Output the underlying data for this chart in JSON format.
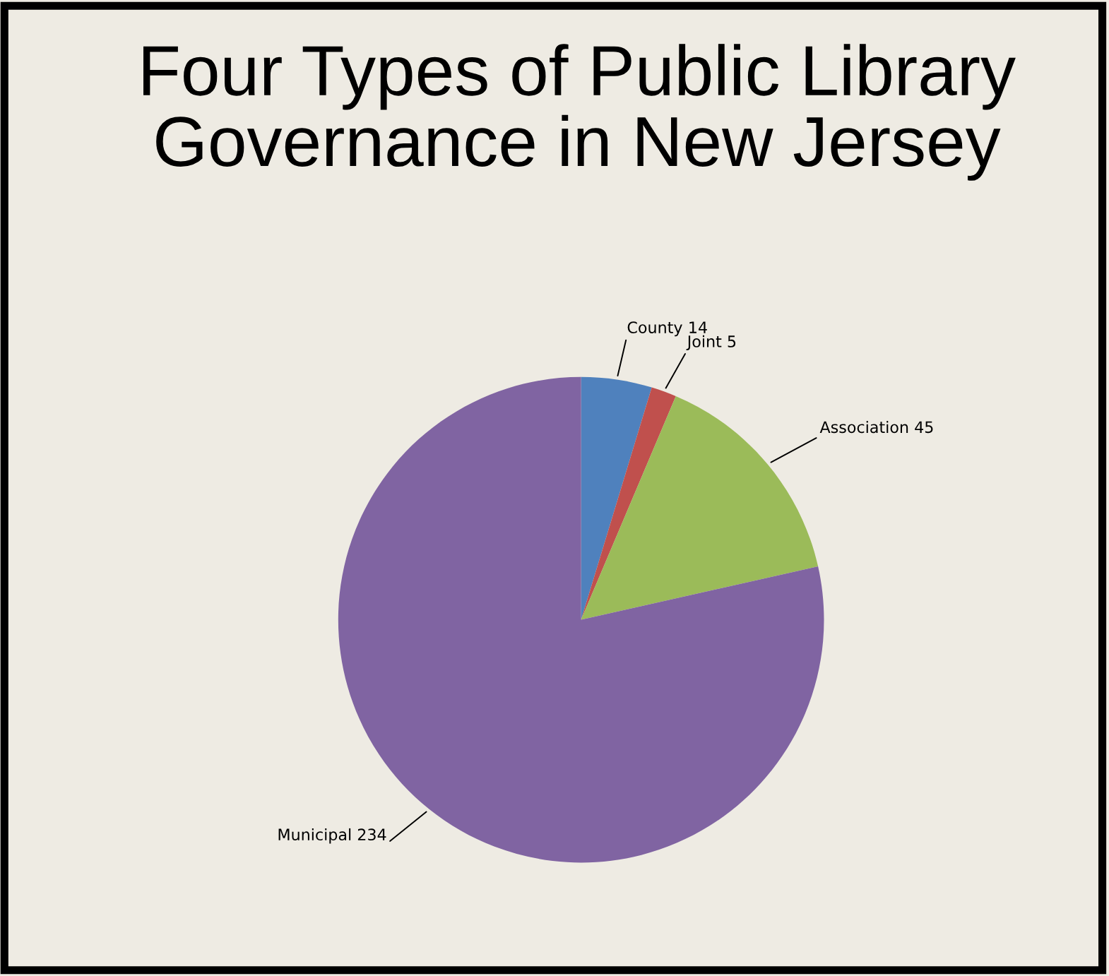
{
  "chart_data": {
    "type": "pie",
    "title": "Four Types of Public Library Governance in New Jersey",
    "categories": [
      "County",
      "Joint",
      "Association",
      "Municipal"
    ],
    "values": [
      14,
      5,
      45,
      234
    ],
    "colors": [
      "#4f81bd",
      "#c0504d",
      "#9bbb59",
      "#8064a2"
    ],
    "data_labels": true
  }
}
